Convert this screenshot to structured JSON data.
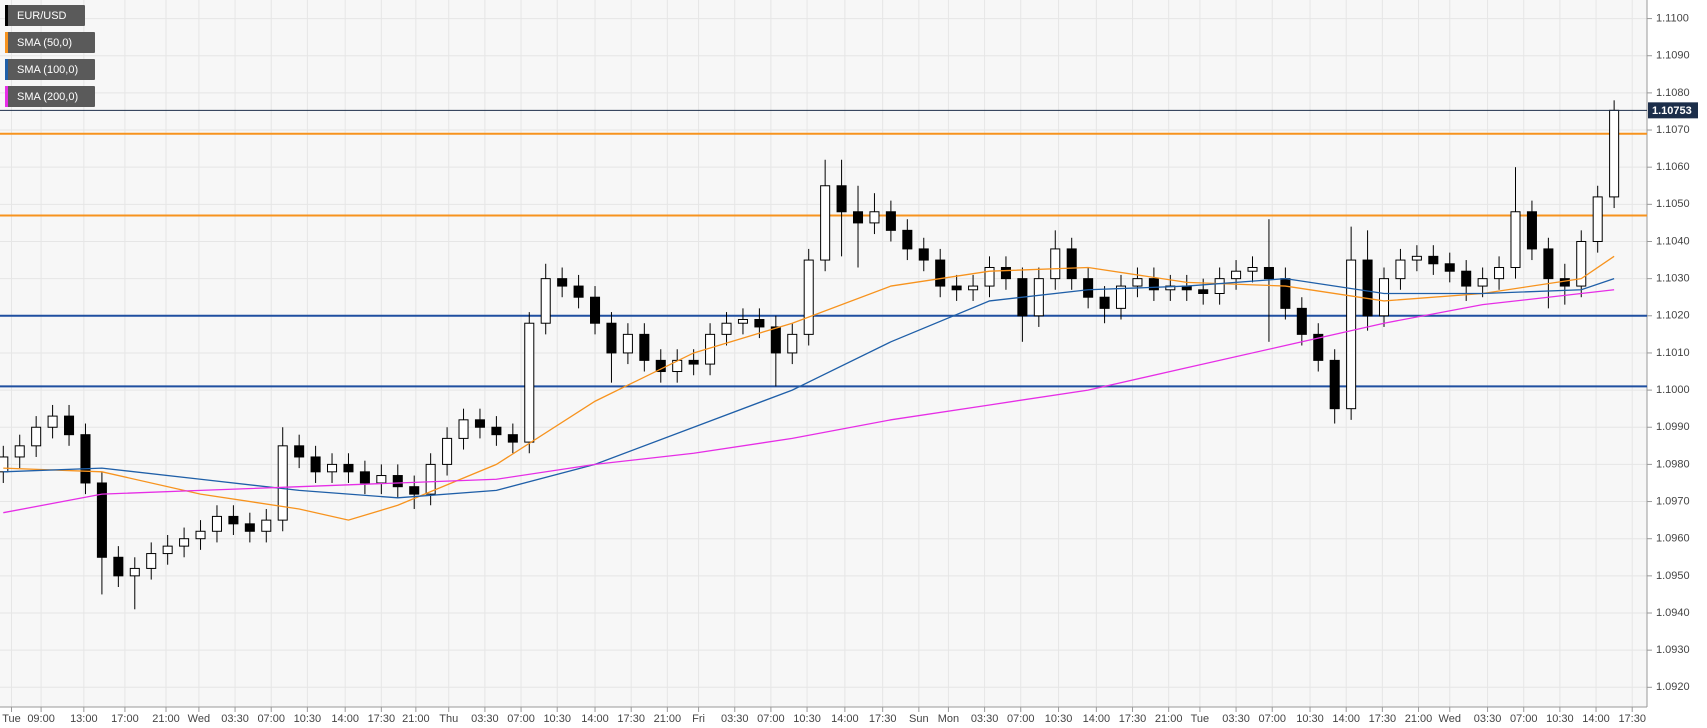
{
  "chart_data": {
    "type": "candlestick",
    "name": "EUR/USD",
    "color": "#000000",
    "up_color": "#ffffff",
    "down_color": "#000000",
    "x": [
      0,
      1,
      2,
      3,
      4,
      5,
      6,
      7,
      8,
      9,
      10,
      11,
      12,
      13,
      14,
      15,
      16,
      17,
      18,
      19,
      20,
      21,
      22,
      23,
      24,
      25,
      26,
      27,
      28,
      29,
      30,
      31,
      32,
      33,
      34,
      35,
      36,
      37,
      38,
      39,
      40,
      41,
      42,
      43,
      44,
      45,
      46,
      47,
      48,
      49,
      50,
      51,
      52,
      53,
      54,
      55,
      56,
      57,
      58,
      59,
      60,
      61,
      62,
      63,
      64,
      65,
      66,
      67,
      68,
      69,
      70,
      71,
      72,
      73,
      74,
      75,
      76,
      77,
      78,
      79,
      80,
      81,
      82,
      83,
      84,
      85,
      86,
      87,
      88,
      89,
      90,
      91,
      92,
      93,
      94,
      95,
      96,
      97,
      98
    ],
    "open": [
      1.0978,
      1.0982,
      1.0985,
      1.099,
      1.0993,
      1.0988,
      1.0975,
      1.0955,
      1.095,
      1.0952,
      1.0956,
      1.0958,
      1.096,
      1.0962,
      1.0966,
      1.0964,
      1.0962,
      1.0965,
      1.0985,
      1.0982,
      1.0978,
      1.098,
      1.0978,
      1.0975,
      1.0977,
      1.0974,
      1.0972,
      1.098,
      1.0987,
      1.0992,
      1.099,
      1.0988,
      1.0986,
      1.1018,
      1.103,
      1.1028,
      1.1025,
      1.1018,
      1.101,
      1.1015,
      1.1008,
      1.1005,
      1.1008,
      1.1007,
      1.1015,
      1.1018,
      1.1019,
      1.1017,
      1.101,
      1.1015,
      1.1035,
      1.1055,
      1.1048,
      1.1045,
      1.1048,
      1.1043,
      1.1038,
      1.1035,
      1.1028,
      1.1027,
      1.1028,
      1.1033,
      1.103,
      1.102,
      1.103,
      1.1038,
      1.103,
      1.1025,
      1.1022,
      1.1028,
      1.103,
      1.1027,
      1.1028,
      1.1027,
      1.1026,
      1.103,
      1.1032,
      1.1033,
      1.103,
      1.1022,
      1.1015,
      1.1008,
      1.0995,
      1.1035,
      1.102,
      1.103,
      1.1035,
      1.1036,
      1.1034,
      1.1032,
      1.1028,
      1.103,
      1.1033,
      1.1048,
      1.1038,
      1.103,
      1.1028,
      1.104,
      1.1052
    ],
    "high": [
      1.0985,
      1.0988,
      1.0993,
      1.0996,
      1.0996,
      1.0991,
      1.0978,
      1.0958,
      1.0955,
      1.0959,
      1.0961,
      1.0963,
      1.0965,
      1.0969,
      1.0969,
      1.0967,
      1.0968,
      1.099,
      1.0988,
      1.0985,
      1.0983,
      1.0983,
      1.0981,
      1.098,
      1.098,
      1.0977,
      1.0983,
      1.099,
      1.0995,
      1.0995,
      1.0993,
      1.0991,
      1.1021,
      1.1034,
      1.1033,
      1.1031,
      1.1028,
      1.1021,
      1.1018,
      1.1018,
      1.1011,
      1.1011,
      1.1011,
      1.1018,
      1.1021,
      1.1022,
      1.1022,
      1.102,
      1.1018,
      1.1038,
      1.1062,
      1.1062,
      1.1055,
      1.1053,
      1.1051,
      1.1046,
      1.1041,
      1.1038,
      1.1031,
      1.1031,
      1.1036,
      1.1036,
      1.1033,
      1.1033,
      1.1043,
      1.1041,
      1.1033,
      1.1028,
      1.1031,
      1.1033,
      1.1033,
      1.1031,
      1.1031,
      1.103,
      1.1033,
      1.1035,
      1.1036,
      1.1046,
      1.1033,
      1.1025,
      1.1018,
      1.1011,
      1.1044,
      1.1043,
      1.1033,
      1.1038,
      1.1039,
      1.1039,
      1.1037,
      1.1035,
      1.1033,
      1.1036,
      1.106,
      1.1051,
      1.1041,
      1.1034,
      1.1043,
      1.1055,
      1.1078
    ],
    "low": [
      1.0975,
      1.0979,
      1.0982,
      1.0987,
      1.0985,
      1.0972,
      1.0945,
      1.0947,
      1.0941,
      1.0949,
      1.0953,
      1.0955,
      1.0957,
      1.0959,
      1.0961,
      1.0959,
      1.0959,
      1.0962,
      1.0979,
      1.0975,
      1.0975,
      1.0975,
      1.0972,
      1.0972,
      1.0971,
      1.0968,
      1.0969,
      1.0977,
      1.0984,
      1.0987,
      1.0985,
      1.0983,
      1.0983,
      1.1015,
      1.1025,
      1.1022,
      1.1015,
      1.1002,
      1.1007,
      1.1005,
      1.1002,
      1.1002,
      1.1004,
      1.1004,
      1.1012,
      1.1015,
      1.1014,
      1.1001,
      1.1007,
      1.1012,
      1.1032,
      1.1036,
      1.1033,
      1.1042,
      1.104,
      1.1035,
      1.1032,
      1.1025,
      1.1024,
      1.1024,
      1.1025,
      1.1027,
      1.1013,
      1.1017,
      1.1027,
      1.1027,
      1.1022,
      1.1018,
      1.1019,
      1.1025,
      1.1024,
      1.1024,
      1.1024,
      1.1023,
      1.1023,
      1.1027,
      1.1029,
      1.1013,
      1.1019,
      1.1012,
      1.1005,
      1.0991,
      1.0992,
      1.1016,
      1.1017,
      1.1027,
      1.1032,
      1.1031,
      1.1029,
      1.1024,
      1.1025,
      1.1027,
      1.103,
      1.1035,
      1.1022,
      1.1023,
      1.1025,
      1.1037,
      1.1049
    ],
    "close": [
      1.0982,
      1.0985,
      1.099,
      1.0993,
      1.0988,
      1.0975,
      1.0955,
      1.095,
      1.0952,
      1.0956,
      1.0958,
      1.096,
      1.0962,
      1.0966,
      1.0964,
      1.0962,
      1.0965,
      1.0985,
      1.0982,
      1.0978,
      1.098,
      1.0978,
      1.0975,
      1.0977,
      1.0974,
      1.0972,
      1.098,
      1.0987,
      1.0992,
      1.099,
      1.0988,
      1.0986,
      1.1018,
      1.103,
      1.1028,
      1.1025,
      1.1018,
      1.101,
      1.1015,
      1.1008,
      1.1005,
      1.1008,
      1.1007,
      1.1015,
      1.1018,
      1.1019,
      1.1017,
      1.101,
      1.1015,
      1.1035,
      1.1055,
      1.1048,
      1.1045,
      1.1048,
      1.1043,
      1.1038,
      1.1035,
      1.1028,
      1.1027,
      1.1028,
      1.1033,
      1.103,
      1.102,
      1.103,
      1.1038,
      1.103,
      1.1025,
      1.1022,
      1.1028,
      1.103,
      1.1027,
      1.1028,
      1.1027,
      1.1026,
      1.103,
      1.1032,
      1.1033,
      1.103,
      1.1022,
      1.1015,
      1.1008,
      1.0995,
      1.1035,
      1.102,
      1.103,
      1.1035,
      1.1036,
      1.1034,
      1.1032,
      1.1028,
      1.103,
      1.1033,
      1.1048,
      1.1038,
      1.103,
      1.1028,
      1.104,
      1.1052,
      1.10753
    ],
    "series": [
      {
        "name": "SMA (50,0)",
        "color": "#f7931e",
        "x": [
          0,
          6,
          12,
          18,
          21,
          24,
          30,
          36,
          42,
          48,
          54,
          60,
          66,
          72,
          78,
          84,
          90,
          96,
          98
        ],
        "values": [
          1.0979,
          1.0978,
          1.0972,
          1.0968,
          1.0965,
          1.0969,
          1.098,
          1.0997,
          1.101,
          1.1018,
          1.1028,
          1.1032,
          1.1033,
          1.1029,
          1.1028,
          1.1024,
          1.1026,
          1.103,
          1.1036
        ]
      },
      {
        "name": "SMA (100,0)",
        "color": "#1f5fa8",
        "x": [
          0,
          6,
          12,
          18,
          24,
          30,
          36,
          42,
          48,
          54,
          60,
          66,
          72,
          78,
          84,
          90,
          96,
          98
        ],
        "values": [
          1.0978,
          1.0979,
          1.0976,
          1.0973,
          1.0971,
          1.0973,
          1.098,
          1.099,
          1.1,
          1.1013,
          1.1024,
          1.1027,
          1.1028,
          1.103,
          1.1026,
          1.1026,
          1.1027,
          1.103
        ]
      },
      {
        "name": "SMA (200,0)",
        "color": "#e62ee6",
        "x": [
          0,
          6,
          12,
          18,
          24,
          30,
          36,
          42,
          48,
          54,
          60,
          66,
          72,
          78,
          84,
          90,
          96,
          98
        ],
        "values": [
          1.0967,
          1.0972,
          1.0973,
          1.0974,
          1.0975,
          1.0976,
          1.098,
          1.0983,
          1.0987,
          1.0992,
          1.0996,
          1.1,
          1.1006,
          1.1012,
          1.1018,
          1.1023,
          1.1026,
          1.1027
        ]
      }
    ],
    "levels": [
      {
        "value": 1.1069,
        "color": "#f7931e"
      },
      {
        "value": 1.1047,
        "color": "#f7931e"
      },
      {
        "value": 1.102,
        "color": "#1f4fa0"
      },
      {
        "value": 1.1001,
        "color": "#1f4fa0"
      }
    ],
    "last_price": 1.10753,
    "last_price_color": "#1c2e4a",
    "xlim": [
      -0.2,
      100
    ],
    "ylim": [
      1.09147,
      1.1105
    ],
    "grid": true,
    "yticks": [
      {
        "value": 1.092,
        "label": "1.0920"
      },
      {
        "value": 1.093,
        "label": "1.0930"
      },
      {
        "value": 1.094,
        "label": "1.0940"
      },
      {
        "value": 1.095,
        "label": "1.0950"
      },
      {
        "value": 1.096,
        "label": "1.0960"
      },
      {
        "value": 1.097,
        "label": "1.0970"
      },
      {
        "value": 1.098,
        "label": "1.0980"
      },
      {
        "value": 1.099,
        "label": "1.0990"
      },
      {
        "value": 1.1,
        "label": "1.1000"
      },
      {
        "value": 1.101,
        "label": "1.1010"
      },
      {
        "value": 1.102,
        "label": "1.1020"
      },
      {
        "value": 1.103,
        "label": "1.1030"
      },
      {
        "value": 1.104,
        "label": "1.1040"
      },
      {
        "value": 1.105,
        "label": "1.1050"
      },
      {
        "value": 1.106,
        "label": "1.1060"
      },
      {
        "value": 1.107,
        "label": "1.1070"
      },
      {
        "value": 1.108,
        "label": "1.1080"
      },
      {
        "value": 1.109,
        "label": "1.1090"
      },
      {
        "value": 1.11,
        "label": "1.1100"
      }
    ],
    "xticks": [
      {
        "value": 0.5,
        "label": "Tue"
      },
      {
        "value": 2.3,
        "label": "09:00"
      },
      {
        "value": 4.9,
        "label": "13:00"
      },
      {
        "value": 7.4,
        "label": "17:00"
      },
      {
        "value": 9.9,
        "label": "21:00"
      },
      {
        "value": 11.9,
        "label": "Wed"
      },
      {
        "value": 14.1,
        "label": "03:30"
      },
      {
        "value": 16.3,
        "label": "07:00"
      },
      {
        "value": 18.5,
        "label": "10:30"
      },
      {
        "value": 20.8,
        "label": "14:00"
      },
      {
        "value": 23,
        "label": "17:30"
      },
      {
        "value": 25.1,
        "label": "21:00"
      },
      {
        "value": 27.1,
        "label": "Thu"
      },
      {
        "value": 29.3,
        "label": "03:30"
      },
      {
        "value": 31.5,
        "label": "07:00"
      },
      {
        "value": 33.7,
        "label": "10:30"
      },
      {
        "value": 36,
        "label": "14:00"
      },
      {
        "value": 38.2,
        "label": "17:30"
      },
      {
        "value": 40.4,
        "label": "21:00"
      },
      {
        "value": 42.3,
        "label": "Fri"
      },
      {
        "value": 44.5,
        "label": "03:30"
      },
      {
        "value": 46.7,
        "label": "07:00"
      },
      {
        "value": 48.9,
        "label": "10:30"
      },
      {
        "value": 51.2,
        "label": "14:00"
      },
      {
        "value": 53.5,
        "label": "17:30"
      },
      {
        "value": 55.7,
        "label": "Sun"
      },
      {
        "value": 57.5,
        "label": "Mon"
      },
      {
        "value": 59.7,
        "label": "03:30"
      },
      {
        "value": 61.9,
        "label": "07:00"
      },
      {
        "value": 64.2,
        "label": "10:30"
      },
      {
        "value": 66.5,
        "label": "14:00"
      },
      {
        "value": 68.7,
        "label": "17:30"
      },
      {
        "value": 70.9,
        "label": "21:00"
      },
      {
        "value": 72.8,
        "label": "Tue"
      },
      {
        "value": 75,
        "label": "03:30"
      },
      {
        "value": 77.2,
        "label": "07:00"
      },
      {
        "value": 79.5,
        "label": "10:30"
      },
      {
        "value": 81.7,
        "label": "14:00"
      },
      {
        "value": 83.9,
        "label": "17:30"
      },
      {
        "value": 86.1,
        "label": "21:00"
      },
      {
        "value": 88,
        "label": "Wed"
      },
      {
        "value": 90.3,
        "label": "03:30"
      },
      {
        "value": 92.5,
        "label": "07:00"
      },
      {
        "value": 94.7,
        "label": "10:30"
      },
      {
        "value": 96.9,
        "label": "14:00"
      },
      {
        "value": 99.1,
        "label": "17:30"
      }
    ]
  }
}
